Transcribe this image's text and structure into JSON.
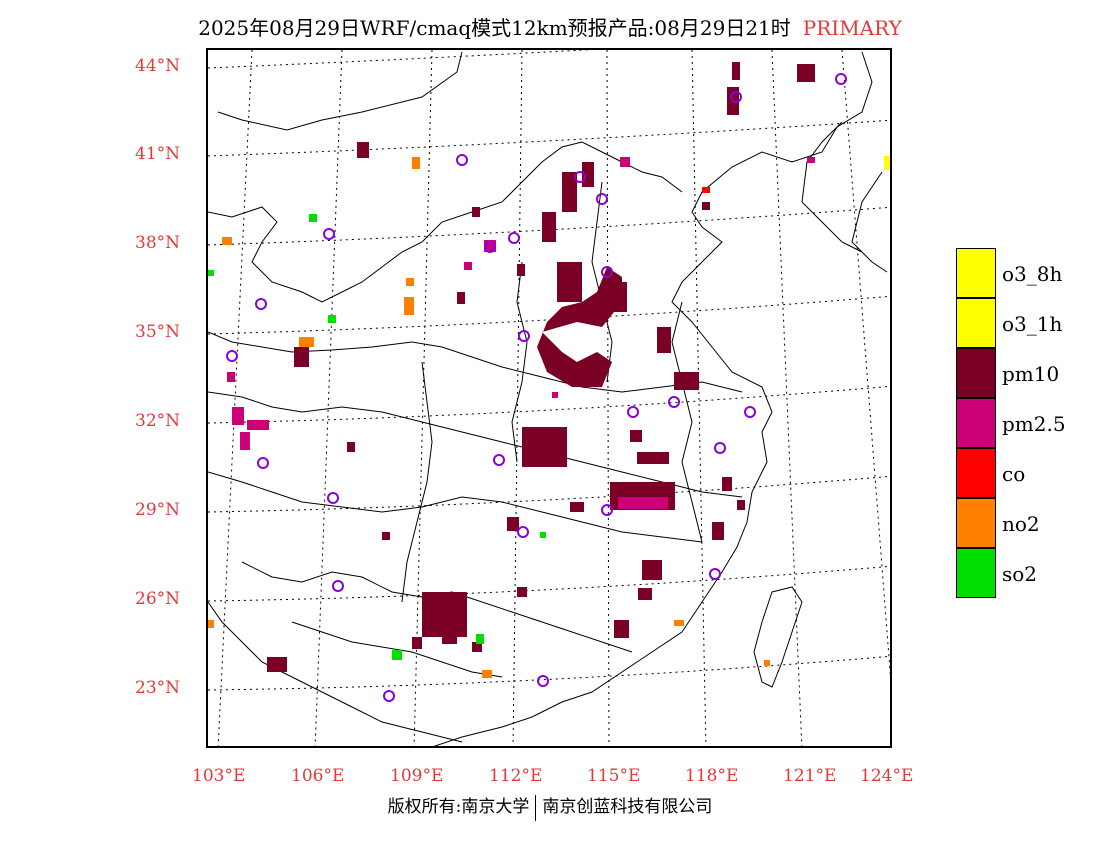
{
  "title": {
    "main": "2025年08月29日WRF/cmaq模式12km预报产品:08月29日21时",
    "tag": "PRIMARY"
  },
  "axes": {
    "lat_labels": [
      "44°N",
      "41°N",
      "38°N",
      "35°N",
      "32°N",
      "29°N",
      "26°N",
      "23°N"
    ],
    "lon_labels": [
      "103°E",
      "106°E",
      "109°E",
      "112°E",
      "115°E",
      "118°E",
      "121°E",
      "124°E"
    ]
  },
  "legend": [
    {
      "label": "o3_8h",
      "color": "#ffff00"
    },
    {
      "label": "o3_1h",
      "color": "#ffff00"
    },
    {
      "label": "pm10",
      "color": "#7a0026"
    },
    {
      "label": "pm2.5",
      "color": "#cc0077"
    },
    {
      "label": "co",
      "color": "#ff0000"
    },
    {
      "label": "no2",
      "color": "#ff7f00"
    },
    {
      "label": "so2",
      "color": "#00e000"
    }
  ],
  "footer": {
    "left": "版权所有:南京大学",
    "right": "南京创蓝科技有限公司"
  }
}
